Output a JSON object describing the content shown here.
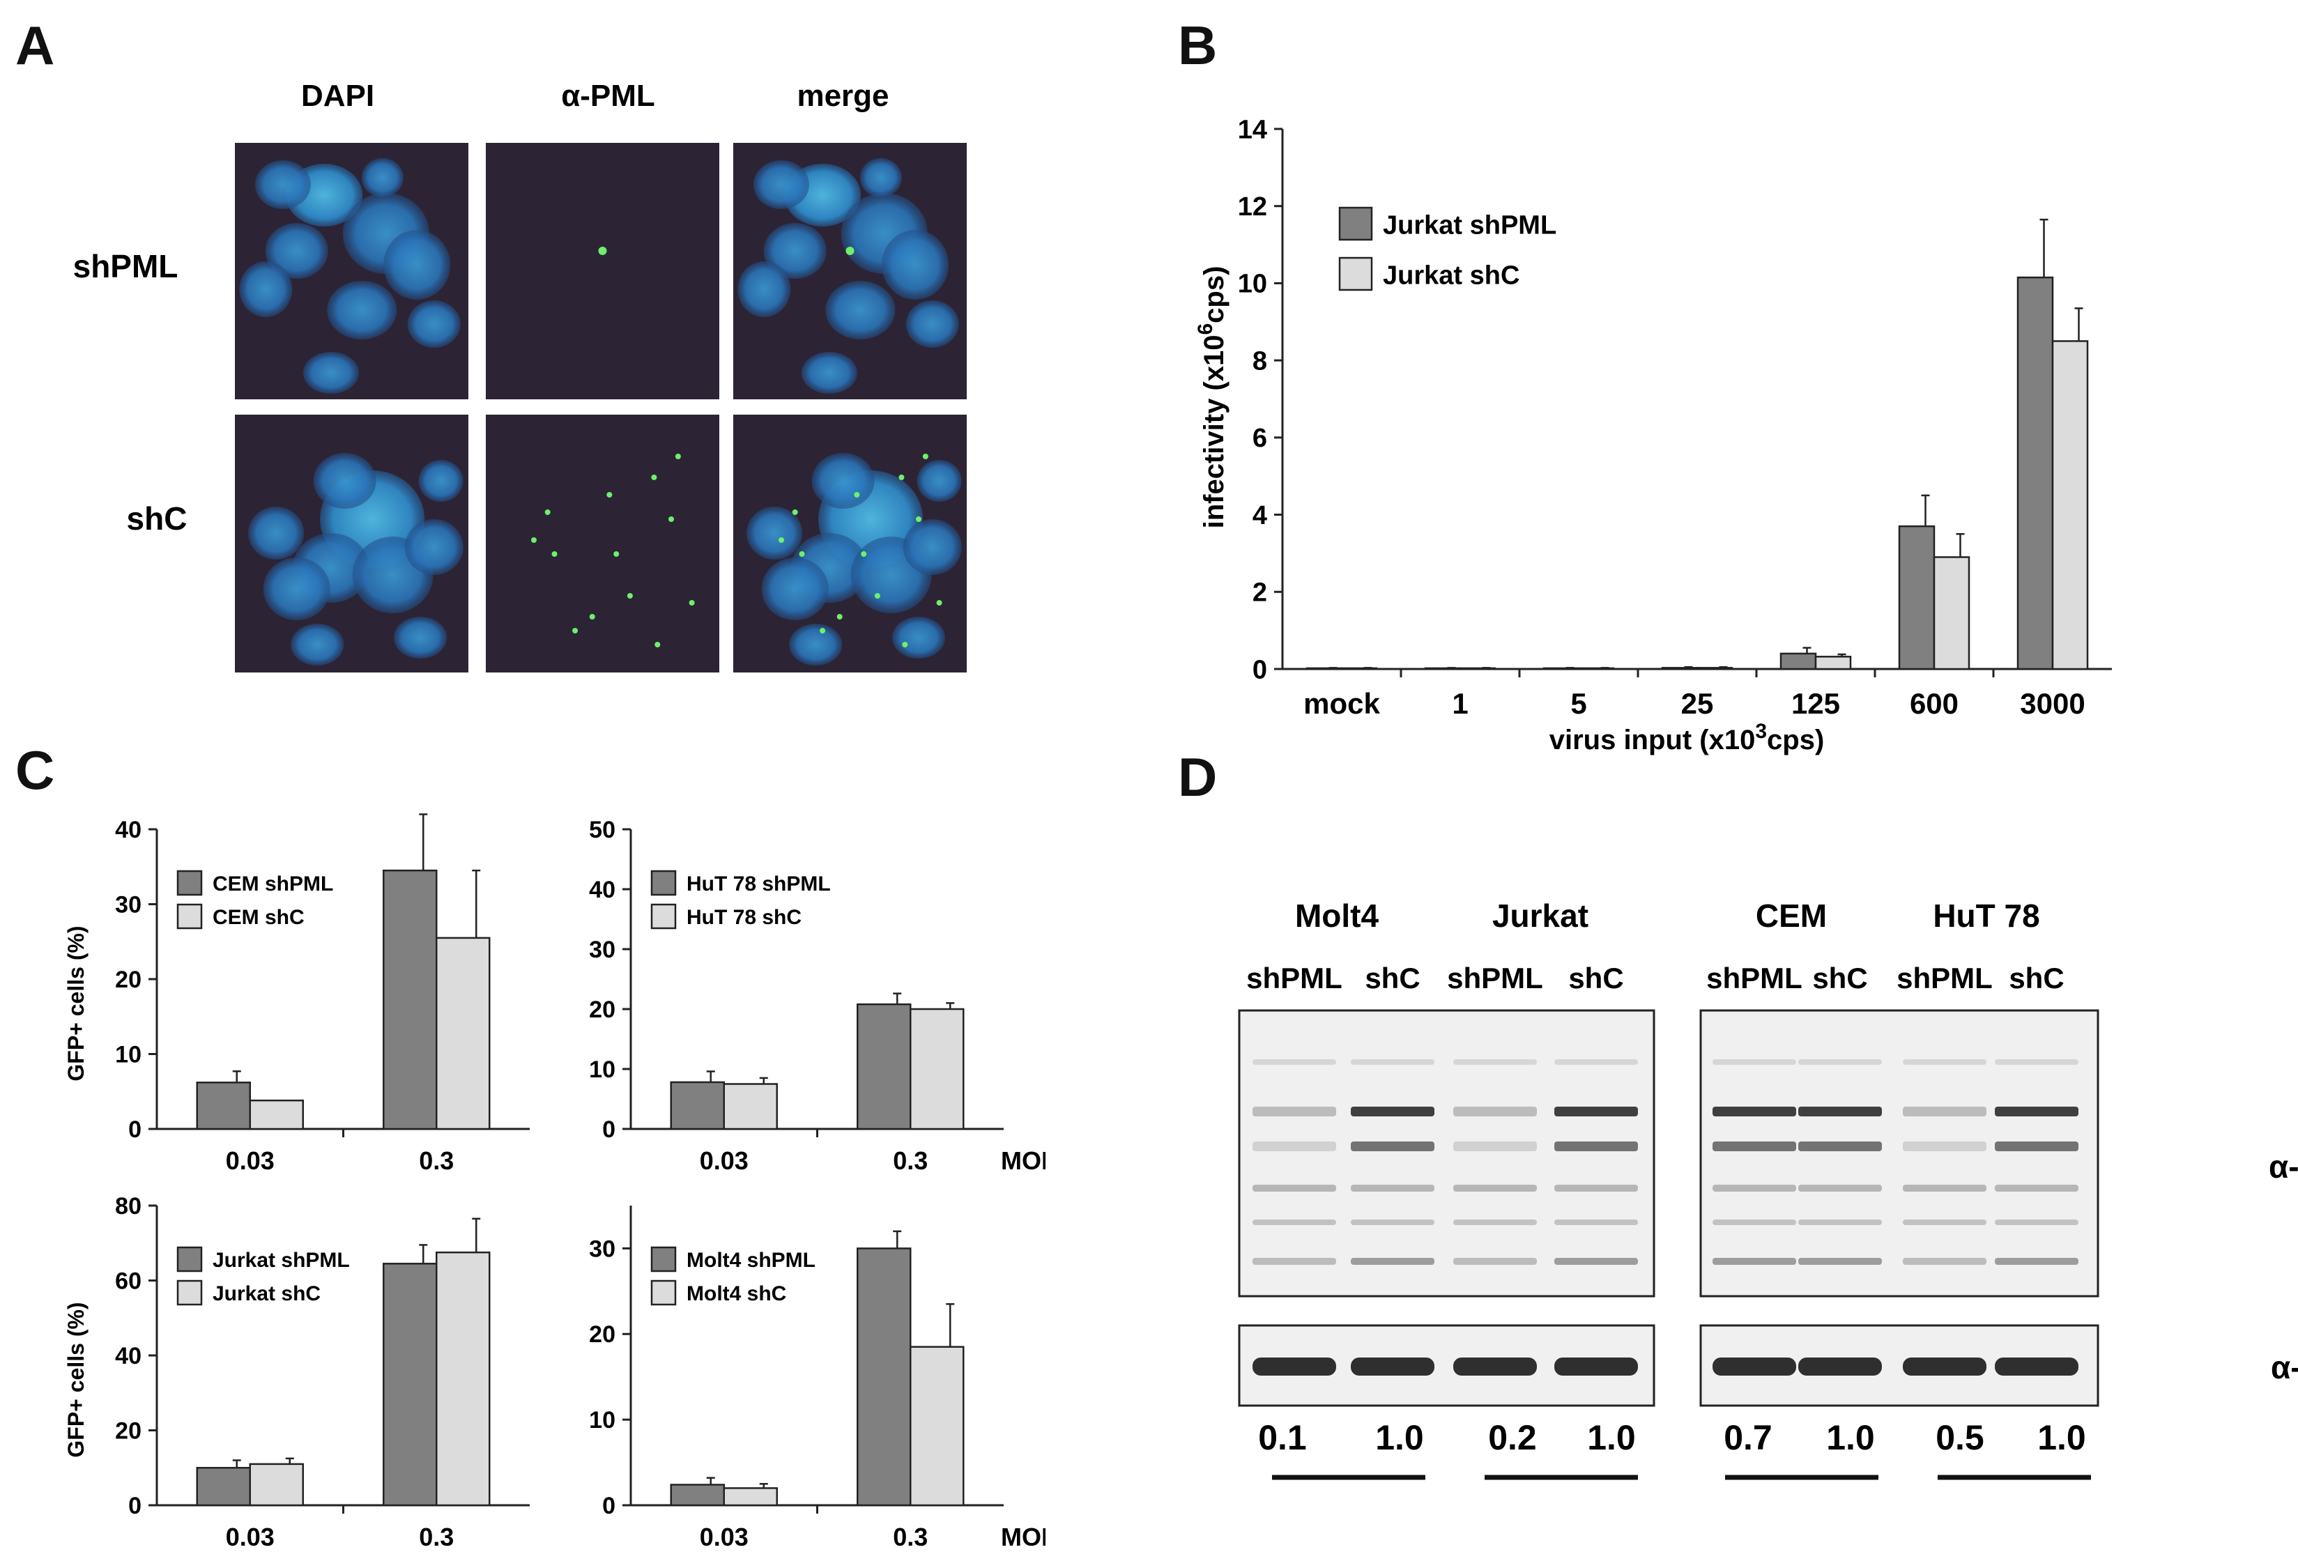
{
  "panels": {
    "A": {
      "letter": "A",
      "columns": [
        "DAPI",
        "α-PML",
        "merge"
      ],
      "rows": [
        "shPML",
        "shC"
      ]
    },
    "B": {
      "letter": "B"
    },
    "C": {
      "letter": "C"
    },
    "D": {
      "letter": "D",
      "groups": [
        "Molt4",
        "Jurkat",
        "CEM",
        "HuT 78"
      ],
      "lanes": [
        "shPML",
        "shC",
        "shPML",
        "shC",
        "shPML",
        "shC",
        "shPML",
        "shC"
      ],
      "blot_labels": [
        "α-PML",
        "α-GAPDH"
      ],
      "ratios": [
        "0.1",
        "1.0",
        "0.2",
        "1.0",
        "0.7",
        "1.0",
        "0.5",
        "1.0"
      ]
    }
  },
  "colors": {
    "dark_bar": "#808080",
    "light_bar": "#dcdcdc",
    "micro_bg": "#2c2434"
  },
  "chart_data": [
    {
      "id": "B",
      "type": "bar",
      "categories": [
        "mock",
        "1",
        "5",
        "25",
        "125",
        "600",
        "3000"
      ],
      "series": [
        {
          "name": "Jurkat shPML",
          "values": [
            0.02,
            0.02,
            0.02,
            0.03,
            0.4,
            3.7,
            10.15
          ],
          "errors": [
            0.01,
            0.01,
            0.01,
            0.02,
            0.15,
            0.8,
            1.5
          ]
        },
        {
          "name": "Jurkat shC",
          "values": [
            0.02,
            0.02,
            0.02,
            0.03,
            0.32,
            2.9,
            8.5
          ],
          "errors": [
            0.01,
            0.01,
            0.01,
            0.02,
            0.06,
            0.6,
            0.85
          ]
        }
      ],
      "ylabel_parts": [
        "infectivity (x10",
        "6",
        "cps)"
      ],
      "xlabel_parts": [
        "virus input (x10",
        "3",
        "cps)"
      ],
      "ylim": [
        0,
        14
      ],
      "yticks": [
        0,
        2,
        4,
        6,
        8,
        10,
        12,
        14
      ],
      "legend": "upper-left"
    },
    {
      "id": "C1",
      "type": "bar",
      "categories": [
        "0.03",
        "0.3"
      ],
      "series": [
        {
          "name": "CEM shPML",
          "values": [
            6.2,
            34.5
          ],
          "errors": [
            1.5,
            7.5
          ]
        },
        {
          "name": "CEM shC",
          "values": [
            3.8,
            25.5
          ],
          "errors": [
            0,
            9
          ]
        }
      ],
      "ylabel": "GFP+ cells (%)",
      "ylim": [
        0,
        40
      ],
      "yticks": [
        0,
        10,
        20,
        30,
        40
      ],
      "xextra": ""
    },
    {
      "id": "C2",
      "type": "bar",
      "categories": [
        "0.03",
        "0.3"
      ],
      "series": [
        {
          "name": "HuT 78 shPML",
          "values": [
            7.8,
            20.8
          ],
          "errors": [
            1.8,
            1.8
          ]
        },
        {
          "name": "HuT 78 shC",
          "values": [
            7.5,
            20.0
          ],
          "errors": [
            1.0,
            1.0
          ]
        }
      ],
      "ylabel": "",
      "ylim": [
        0,
        50
      ],
      "yticks": [
        0,
        10,
        20,
        30,
        40,
        50
      ],
      "xextra": "MOI"
    },
    {
      "id": "C3",
      "type": "bar",
      "categories": [
        "0.03",
        "0.3"
      ],
      "series": [
        {
          "name": "Jurkat shPML",
          "values": [
            10.0,
            64.5
          ],
          "errors": [
            2.0,
            5.0
          ]
        },
        {
          "name": "Jurkat shC",
          "values": [
            11.0,
            67.5
          ],
          "errors": [
            1.5,
            9.0
          ]
        }
      ],
      "ylabel": "GFP+ cells (%)",
      "ylim": [
        0,
        80
      ],
      "yticks": [
        0,
        20,
        40,
        60,
        80
      ],
      "xextra": ""
    },
    {
      "id": "C4",
      "type": "bar",
      "categories": [
        "0.03",
        "0.3"
      ],
      "series": [
        {
          "name": "Molt4 shPML",
          "values": [
            2.4,
            30.0
          ],
          "errors": [
            0.8,
            2.0
          ]
        },
        {
          "name": "Molt4 shC",
          "values": [
            2.0,
            18.5
          ],
          "errors": [
            0.5,
            5.0
          ]
        }
      ],
      "ylabel": "",
      "ylim": [
        0,
        35
      ],
      "yticks": [
        0,
        10,
        20,
        30
      ],
      "xextra": "MOI"
    }
  ]
}
